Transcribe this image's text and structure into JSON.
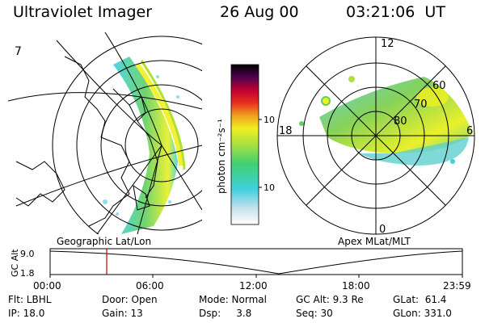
{
  "header": {
    "title": "Ultraviolet Imager",
    "date": "26 Aug 00",
    "time": "03:21:06  UT"
  },
  "geo_panel": {
    "label": "Geographic Lat/Lon",
    "corner_mark": "7"
  },
  "colorbar": {
    "unit_label": "photon cm⁻²s⁻¹",
    "ticks": [
      "100",
      "10"
    ],
    "scale": "log",
    "colors": [
      "#ffffff",
      "#d8e8f0",
      "#40d0e0",
      "#40d070",
      "#a8e040",
      "#f0f020",
      "#f0b020",
      "#f06020",
      "#e01020",
      "#900040",
      "#400050",
      "#000000"
    ]
  },
  "polar_panel": {
    "label": "Apex MLat/MLT",
    "mlt_labels": {
      "top": "12",
      "left": "18",
      "right": "6",
      "bottom": "0"
    },
    "lat_labels": [
      "60",
      "70",
      "80"
    ]
  },
  "alt_plot": {
    "ylabel": "GC Alt",
    "yticks": [
      "9.0",
      "1.8"
    ],
    "xticks": [
      "00:00",
      "06:00",
      "12:00",
      "18:00",
      "23:59"
    ],
    "marker_color": "#cc0000"
  },
  "info": {
    "filter": "Flt: LBHL",
    "door": "Door: Open",
    "mode": "Mode: Normal",
    "gc_alt": "GC Alt: 9.3 Re",
    "glat": "GLat:  61.4",
    "ip": "IP: 18.0",
    "gain": "Gain: 13",
    "dsp": "Dsp:     3.8",
    "seq": "Seq: 30",
    "glon": "GLon: 331.0"
  }
}
